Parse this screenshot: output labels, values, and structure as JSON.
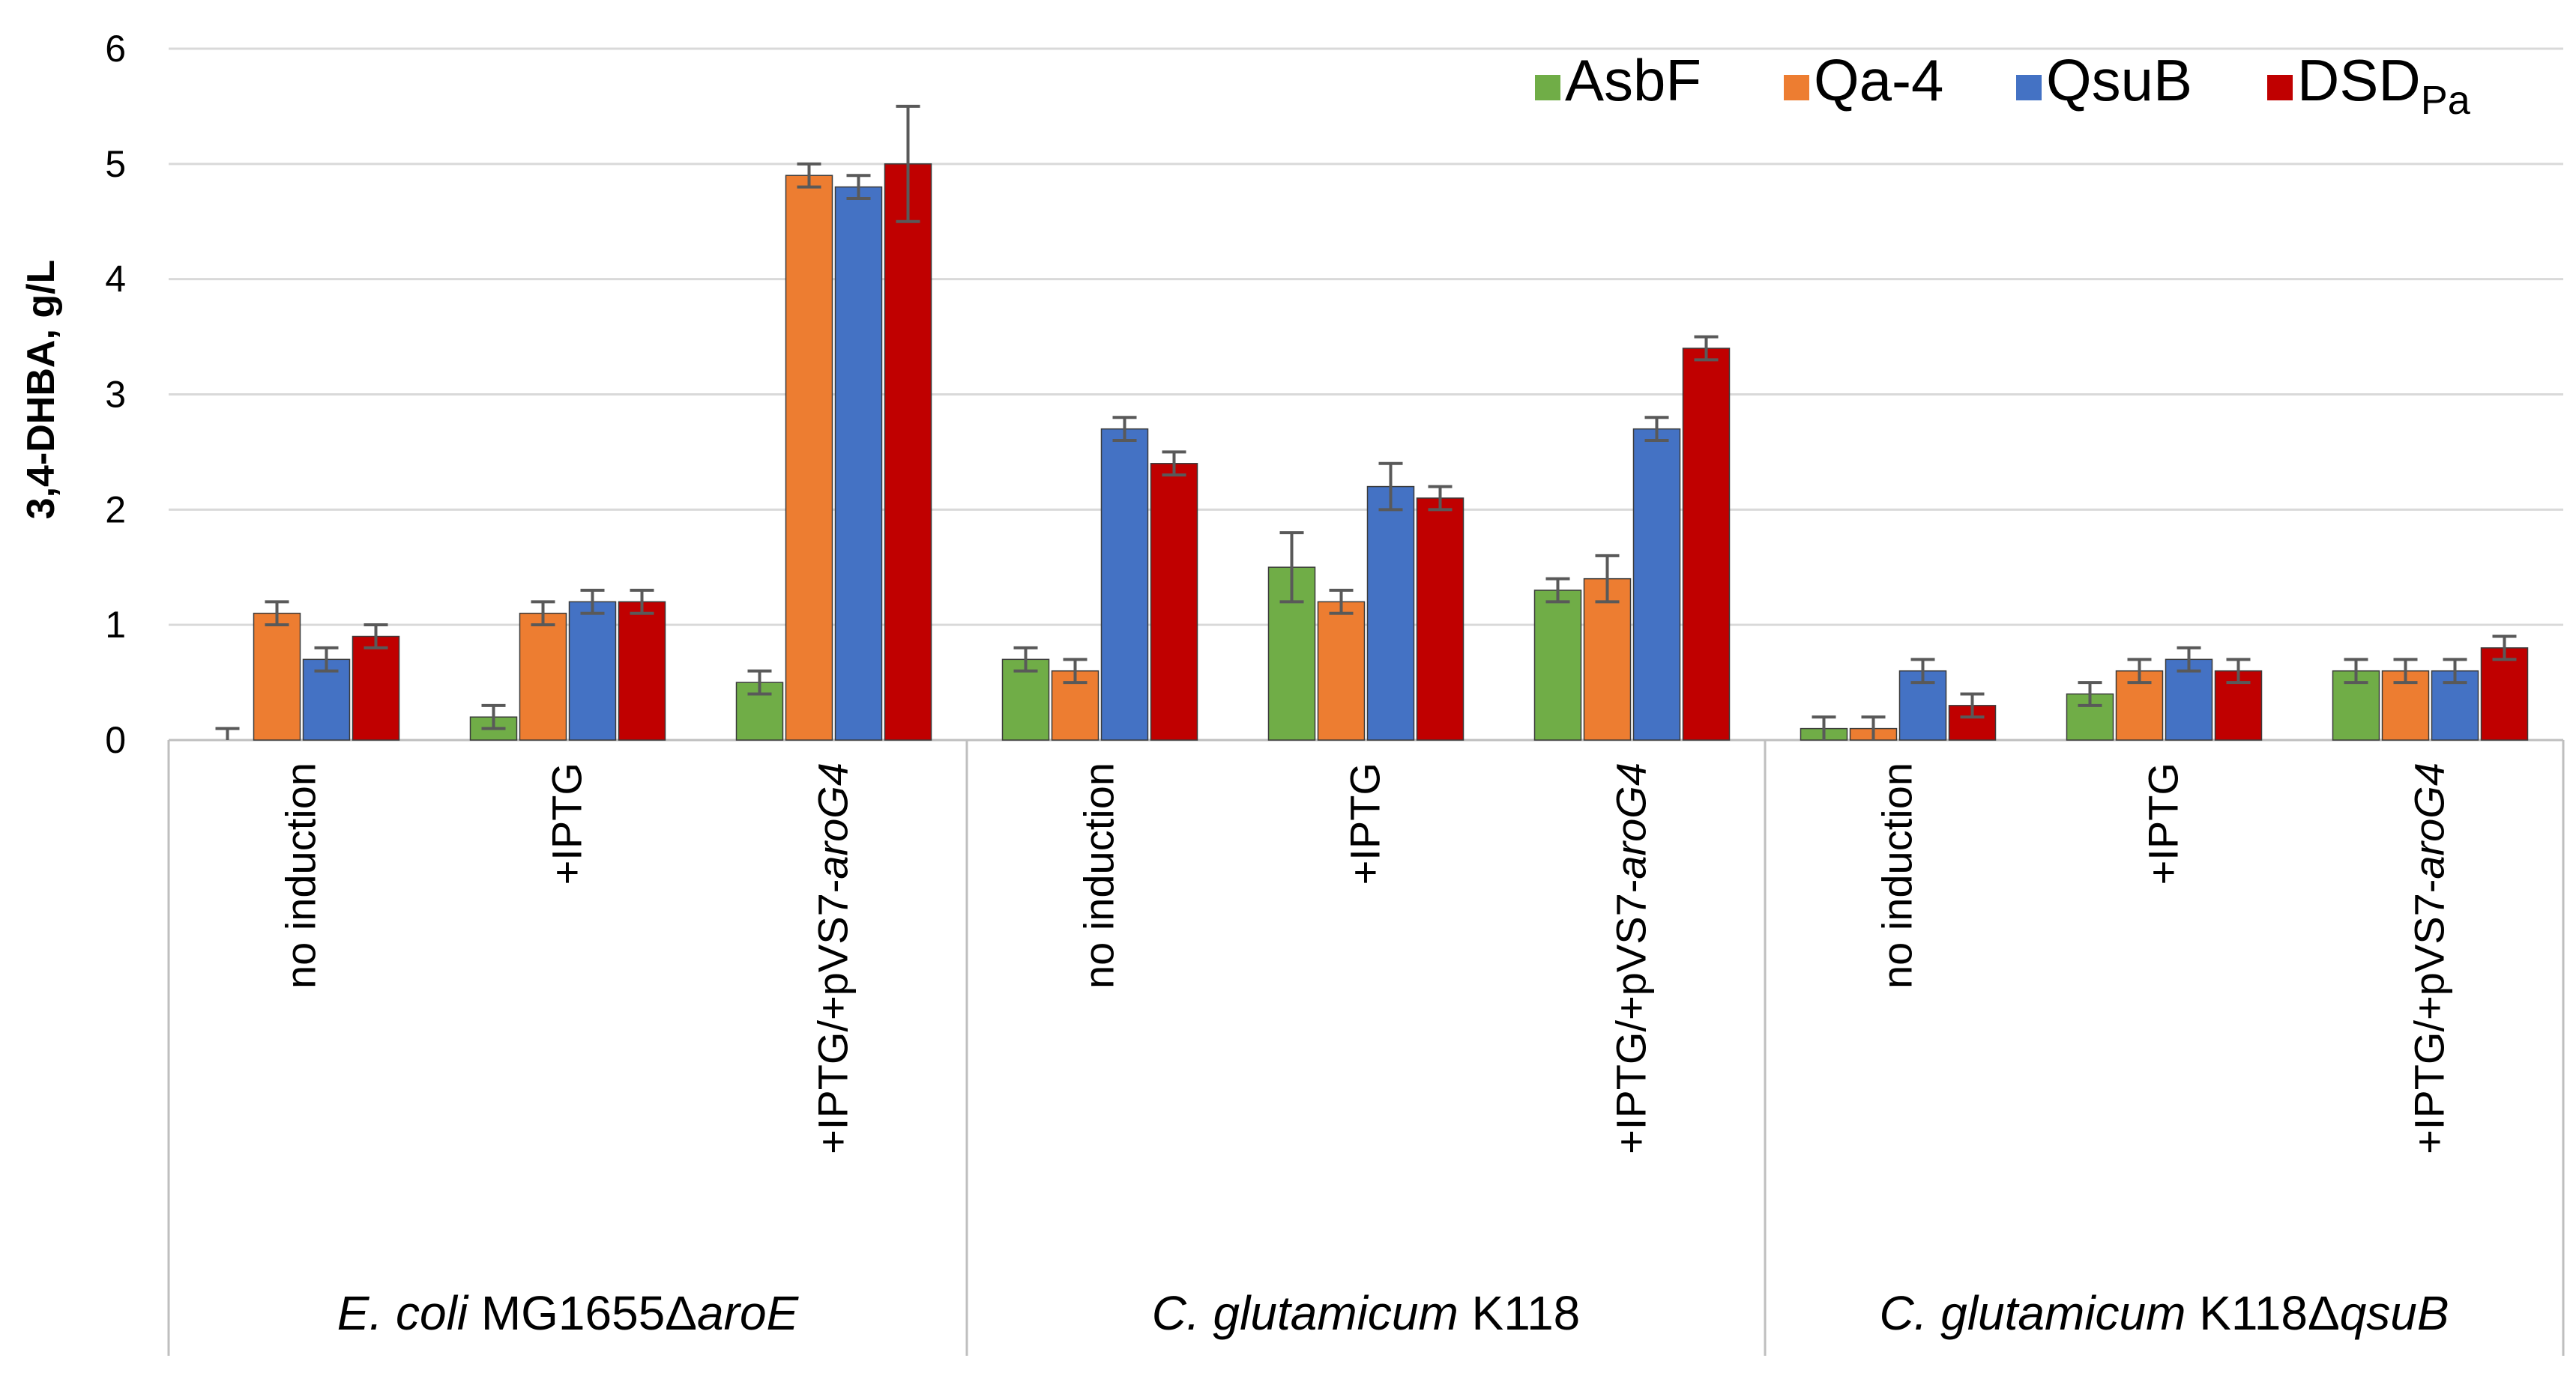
{
  "chart_data": {
    "type": "bar",
    "title": "",
    "xlabel": "",
    "ylabel": "3,4-DHBA, g/L",
    "ylim": [
      0,
      6
    ],
    "yticks": [
      "0",
      "1",
      "2",
      "3",
      "4",
      "5",
      "6"
    ],
    "grid": true,
    "legend_position": "top-right",
    "groups": [
      {
        "name_italic": "E. coli",
        "name_plain": " MG1655Δ",
        "name_italic2": "aroE"
      },
      {
        "name_italic": "C. glutamicum",
        "name_plain": " K118",
        "name_italic2": ""
      },
      {
        "name_italic": "C. glutamicum",
        "name_plain": " K118Δ",
        "name_italic2": "qsuB"
      }
    ],
    "categories": [
      {
        "label": "no induction",
        "label_italic": ""
      },
      {
        "label": "+IPTG",
        "label_italic": ""
      },
      {
        "label": "+IPTG/+pVS7-",
        "label_italic": "aroG4"
      },
      {
        "label": "no induction",
        "label_italic": ""
      },
      {
        "label": "+IPTG",
        "label_italic": ""
      },
      {
        "label": "+IPTG/+pVS7-",
        "label_italic": "aroG4"
      },
      {
        "label": "no induction",
        "label_italic": ""
      },
      {
        "label": "+IPTG",
        "label_italic": ""
      },
      {
        "label": "+IPTG/+pVS7-",
        "label_italic": "aroG4"
      }
    ],
    "series": [
      {
        "name": "AsbF",
        "sub": "",
        "color": "#70ad47",
        "values": [
          0.0,
          0.2,
          0.5,
          0.7,
          1.5,
          1.3,
          0.1,
          0.4,
          0.6
        ],
        "errors": [
          0.1,
          0.1,
          0.1,
          0.1,
          0.3,
          0.1,
          0.1,
          0.1,
          0.1
        ]
      },
      {
        "name": "Qa-4",
        "sub": "",
        "color": "#ed7d31",
        "values": [
          1.1,
          1.1,
          4.9,
          0.6,
          1.2,
          1.4,
          0.1,
          0.6,
          0.6
        ],
        "errors": [
          0.1,
          0.1,
          0.1,
          0.1,
          0.1,
          0.2,
          0.1,
          0.1,
          0.1
        ]
      },
      {
        "name": "QsuB",
        "sub": "",
        "color": "#4472c4",
        "values": [
          0.7,
          1.2,
          4.8,
          2.7,
          2.2,
          2.7,
          0.6,
          0.7,
          0.6
        ],
        "errors": [
          0.1,
          0.1,
          0.1,
          0.1,
          0.2,
          0.1,
          0.1,
          0.1,
          0.1
        ]
      },
      {
        "name": "DSD",
        "sub": "Pa",
        "color": "#c00000",
        "values": [
          0.9,
          1.2,
          5.0,
          2.4,
          2.1,
          3.4,
          0.3,
          0.6,
          0.8
        ],
        "errors": [
          0.1,
          0.1,
          0.5,
          0.1,
          0.1,
          0.1,
          0.1,
          0.1,
          0.1
        ]
      }
    ]
  }
}
